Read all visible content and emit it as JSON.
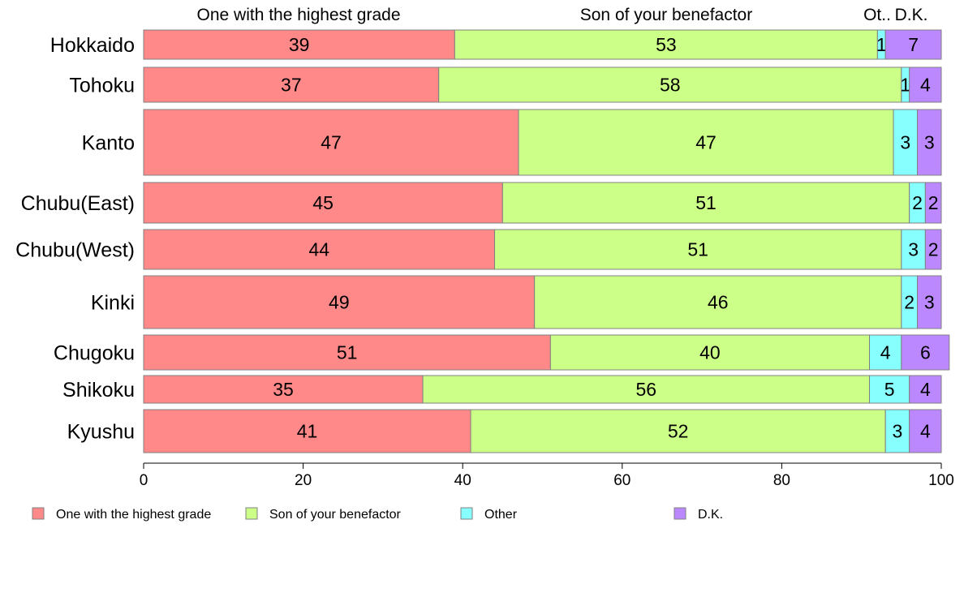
{
  "chart_data": {
    "type": "bar",
    "orientation": "horizontal",
    "stacked": true,
    "categories": [
      "Hokkaido",
      "Tohoku",
      "Kanto",
      "Chubu(East)",
      "Chubu(West)",
      "Kinki",
      "Chugoku",
      "Shikoku",
      "Kyushu"
    ],
    "series": [
      {
        "name": "One with the highest grade",
        "color": "#ff8888",
        "values": [
          39,
          37,
          47,
          45,
          44,
          49,
          51,
          35,
          41
        ]
      },
      {
        "name": "Son of your benefactor",
        "color": "#ccff88",
        "values": [
          53,
          58,
          47,
          51,
          51,
          46,
          40,
          56,
          52
        ]
      },
      {
        "name": "Other",
        "color": "#88ffff",
        "values": [
          1,
          1,
          3,
          2,
          3,
          2,
          4,
          5,
          3
        ]
      },
      {
        "name": "D.K.",
        "color": "#bb88ff",
        "values": [
          7,
          4,
          3,
          2,
          2,
          3,
          6,
          4,
          4
        ]
      }
    ],
    "top_labels": [
      "One with the highest grade",
      "Son of your benefactor",
      "Ot..",
      "D.K."
    ],
    "xlim": [
      0,
      100
    ],
    "xticks": [
      0,
      20,
      40,
      60,
      80,
      100
    ],
    "grid": false,
    "legend_position": "bottom"
  }
}
